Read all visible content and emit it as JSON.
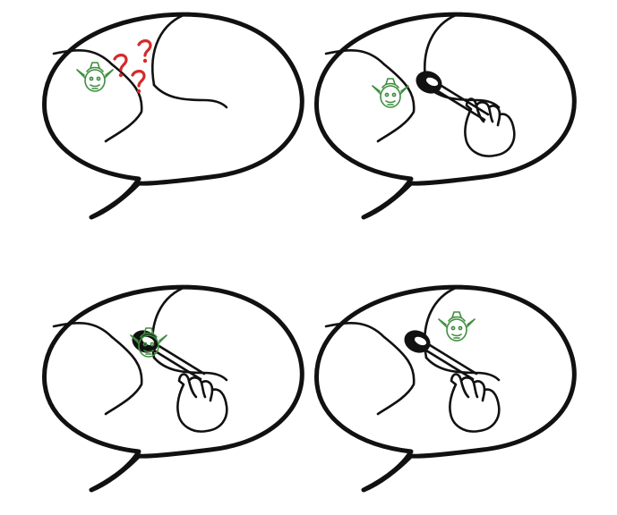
{
  "panels": [
    {
      "name": "panel-1",
      "scene": "goblin-confused",
      "tool": false
    },
    {
      "name": "panel-2",
      "scene": "tweezers-approach",
      "tool": true
    },
    {
      "name": "panel-3",
      "scene": "goblin-caught",
      "tool": true
    },
    {
      "name": "panel-4",
      "scene": "goblin-freed",
      "tool": true
    }
  ],
  "colors": {
    "ink": "#111111",
    "goblin": "#3f8f3f",
    "question_marks": "#d42a2a",
    "background": "#ffffff"
  },
  "icons": [
    "speech-bubble-icon",
    "goblin-icon",
    "question-mark-icon",
    "tweezers-icon",
    "hand-icon"
  ]
}
